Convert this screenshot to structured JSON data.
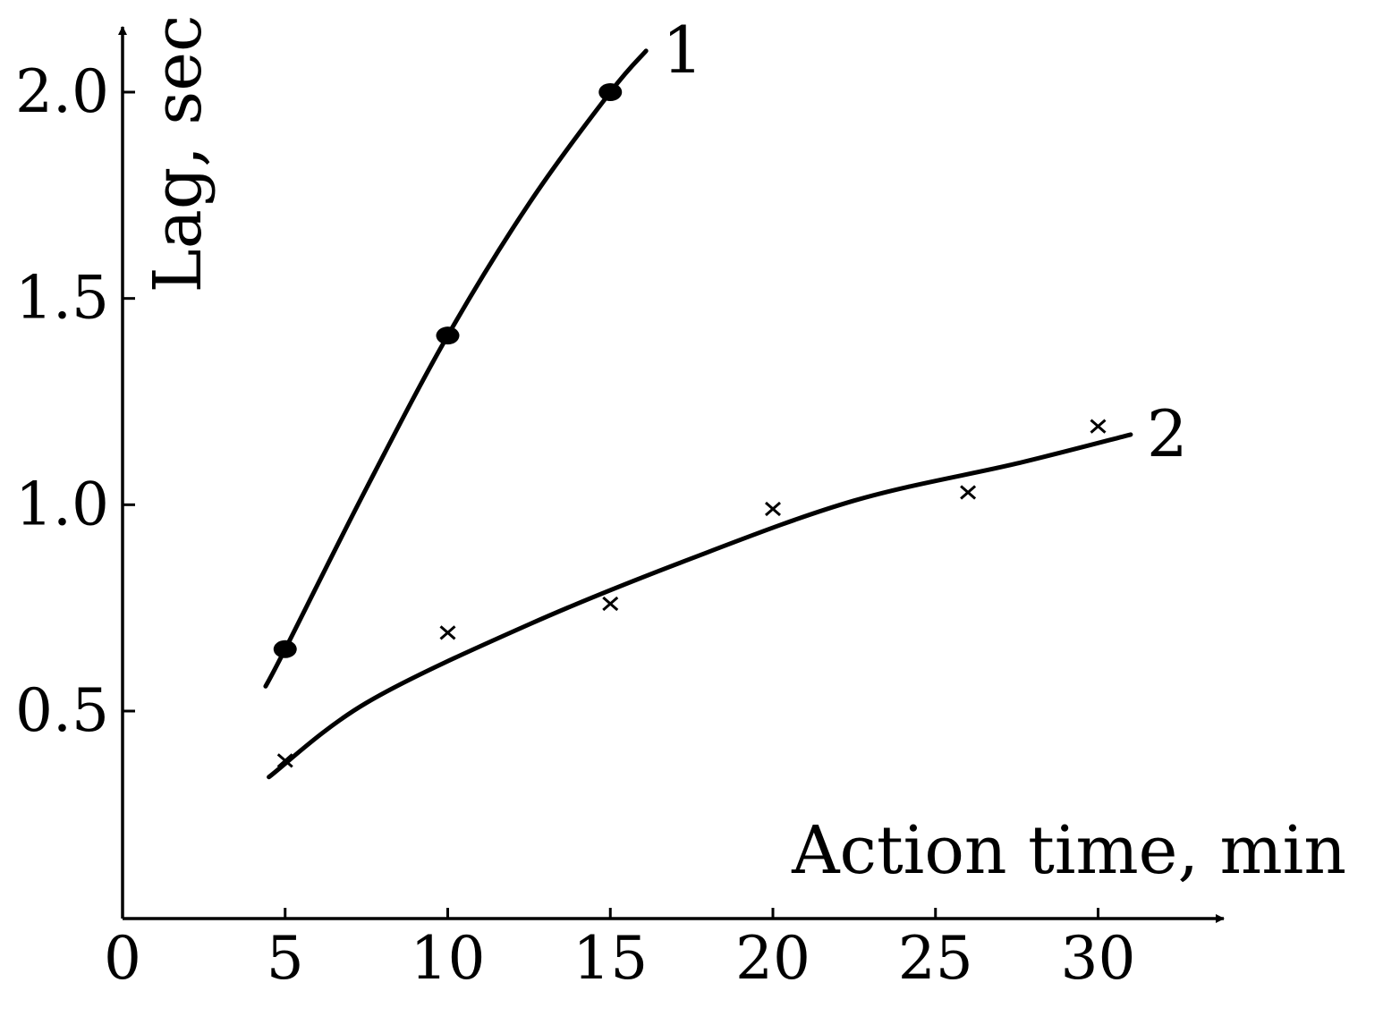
{
  "chart_data": {
    "type": "line",
    "title": "",
    "xlabel": "Action time, min",
    "ylabel": "Lag, sec",
    "xlim": [
      0,
      33
    ],
    "ylim": [
      0.2,
      2.2
    ],
    "x_ticks": [
      "0",
      "5",
      "10",
      "15",
      "20",
      "25",
      "30"
    ],
    "y_ticks": [
      "0.5",
      "1.0",
      "1.5",
      "2.0"
    ],
    "grid": false,
    "legend": "none",
    "series": [
      {
        "label": "1",
        "marker": "filled-circle",
        "points": [
          {
            "x": 5,
            "y": 0.65
          },
          {
            "x": 10,
            "y": 1.41
          },
          {
            "x": 15,
            "y": 2.0
          }
        ],
        "curve": [
          {
            "x": 4.4,
            "y": 0.56
          },
          {
            "x": 5,
            "y": 0.65
          },
          {
            "x": 7.5,
            "y": 1.04
          },
          {
            "x": 10,
            "y": 1.41
          },
          {
            "x": 12.5,
            "y": 1.73
          },
          {
            "x": 15,
            "y": 2.0
          },
          {
            "x": 16.1,
            "y": 2.1
          }
        ]
      },
      {
        "label": "2",
        "marker": "cross",
        "points": [
          {
            "x": 5,
            "y": 0.38
          },
          {
            "x": 10,
            "y": 0.69
          },
          {
            "x": 15,
            "y": 0.76
          },
          {
            "x": 20,
            "y": 0.99
          },
          {
            "x": 26,
            "y": 1.03
          },
          {
            "x": 30,
            "y": 1.19
          }
        ],
        "curve": [
          {
            "x": 4.5,
            "y": 0.34
          },
          {
            "x": 7.5,
            "y": 0.52
          },
          {
            "x": 12.5,
            "y": 0.71
          },
          {
            "x": 17.5,
            "y": 0.87
          },
          {
            "x": 22.5,
            "y": 1.01
          },
          {
            "x": 27.5,
            "y": 1.1
          },
          {
            "x": 31,
            "y": 1.17
          }
        ]
      }
    ]
  }
}
